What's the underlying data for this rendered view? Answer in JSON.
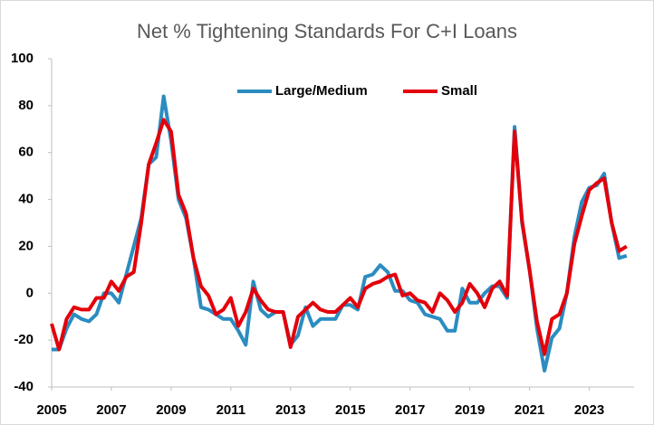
{
  "chart_data": {
    "type": "line",
    "title": "Net % Tightening Standards For C+I Loans",
    "x": [
      2005,
      2005.25,
      2005.5,
      2005.75,
      2006,
      2006.25,
      2006.5,
      2006.75,
      2007,
      2007.25,
      2007.5,
      2007.75,
      2008,
      2008.25,
      2008.5,
      2008.75,
      2009,
      2009.25,
      2009.5,
      2009.75,
      2010,
      2010.25,
      2010.5,
      2010.75,
      2011,
      2011.25,
      2011.5,
      2011.75,
      2012,
      2012.25,
      2012.5,
      2012.75,
      2013,
      2013.25,
      2013.5,
      2013.75,
      2014,
      2014.25,
      2014.5,
      2014.75,
      2015,
      2015.25,
      2015.5,
      2015.75,
      2016,
      2016.25,
      2016.5,
      2016.75,
      2017,
      2017.25,
      2017.5,
      2017.75,
      2018,
      2018.25,
      2018.5,
      2018.75,
      2019,
      2019.25,
      2019.5,
      2019.75,
      2020,
      2020.25,
      2020.5,
      2020.75,
      2021,
      2021.25,
      2021.5,
      2021.75,
      2022,
      2022.25,
      2022.5,
      2022.75,
      2023,
      2023.25,
      2023.5,
      2023.75,
      2024,
      2024.25
    ],
    "series": [
      {
        "name": "Large/Medium",
        "color": "#2b8cc0",
        "values": [
          -24,
          -24,
          -15,
          -9,
          -11,
          -12,
          -9,
          0,
          0,
          -4,
          8,
          20,
          32,
          55,
          58,
          84,
          65,
          40,
          32,
          15,
          -6,
          -7,
          -9,
          -11,
          -11,
          -16,
          -22,
          5,
          -7,
          -10,
          -8,
          -8,
          -22,
          -18,
          -6,
          -14,
          -11,
          -11,
          -11,
          -5,
          -5,
          -7,
          7,
          8,
          12,
          9,
          1,
          1,
          -3,
          -4,
          -9,
          -10,
          -11,
          -16,
          -16,
          2,
          -4,
          -4,
          0,
          3,
          3,
          -2,
          71,
          30,
          10,
          -15,
          -33,
          -19,
          -15,
          0,
          24,
          39,
          45,
          46,
          51,
          30,
          15,
          16
        ]
      },
      {
        "name": "Small",
        "color": "#e3000b",
        "values": [
          -13,
          -24,
          -11,
          -6,
          -7,
          -7,
          -2,
          -2,
          5,
          1,
          7,
          9,
          30,
          55,
          64,
          74,
          69,
          42,
          34,
          15,
          3,
          -1,
          -9,
          -7,
          -2,
          -14,
          -8,
          2,
          -3,
          -7,
          -8,
          -8,
          -23,
          -10,
          -7,
          -4,
          -7,
          -8,
          -8,
          -5,
          -2,
          -6,
          2,
          4,
          5,
          7,
          8,
          -1,
          0,
          -3,
          -4,
          -8,
          0,
          -3,
          -8,
          -4,
          4,
          0,
          -6,
          2,
          5,
          -1,
          69,
          31,
          10,
          -12,
          -26,
          -11,
          -9,
          0,
          21,
          33,
          44,
          47,
          49,
          30,
          18,
          20
        ]
      }
    ],
    "xlim": [
      2005,
      2024.5
    ],
    "xticks": [
      2005,
      2007,
      2009,
      2011,
      2013,
      2015,
      2017,
      2019,
      2021,
      2023
    ],
    "ylim": [
      -40,
      100
    ],
    "yticks": [
      -40,
      -20,
      0,
      20,
      40,
      60,
      80,
      100
    ],
    "grid": false,
    "legend": "top"
  }
}
